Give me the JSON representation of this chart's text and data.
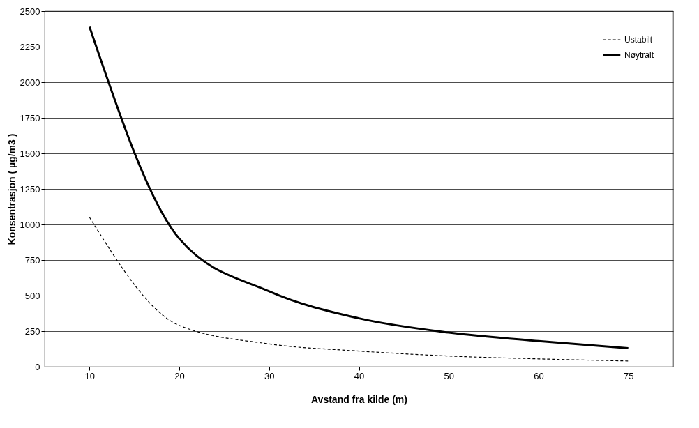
{
  "chart_data": {
    "type": "line",
    "xlabel": "Avstand fra kilde (m)",
    "ylabel": "Konsentrasjon ( µg/m3 )",
    "categories": [
      "10",
      "20",
      "30",
      "40",
      "50",
      "60",
      "75"
    ],
    "series": [
      {
        "name": "Ustabilt",
        "color": "#000000",
        "line_style": "dashed",
        "values": [
          1050,
          290,
          160,
          110,
          75,
          55,
          40
        ]
      },
      {
        "name": "Nøytralt",
        "color": "#000000",
        "line_style": "solid",
        "values": [
          2390,
          900,
          530,
          340,
          240,
          180,
          130
        ]
      }
    ],
    "ylim": [
      0,
      2500
    ],
    "yticks": [
      0,
      250,
      500,
      750,
      1000,
      1250,
      1500,
      1750,
      2000,
      2250,
      2500
    ],
    "grid": "y",
    "legend": "top right",
    "marker": "none"
  }
}
